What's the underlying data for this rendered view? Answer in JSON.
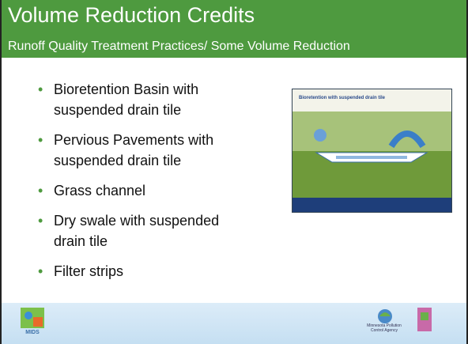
{
  "header": {
    "title": "Volume Reduction Credits",
    "subtitle": "Runoff Quality Treatment Practices/ Some Volume Reduction"
  },
  "bullets": [
    {
      "lines": [
        "Bioretention Basin with",
        "suspended drain tile"
      ]
    },
    {
      "lines": [
        "Pervious Pavements with",
        "suspended drain tile"
      ]
    },
    {
      "lines": [
        "Grass channel"
      ]
    },
    {
      "lines": [
        "Dry swale with suspended",
        "drain tile"
      ]
    },
    {
      "lines": [
        "Filter strips"
      ]
    }
  ],
  "figure": {
    "caption": "Bioretention with suspended drain tile"
  },
  "footer": {
    "left_logo": "MIDS",
    "right_logo": "Minnesota Pollution Control Agency"
  }
}
